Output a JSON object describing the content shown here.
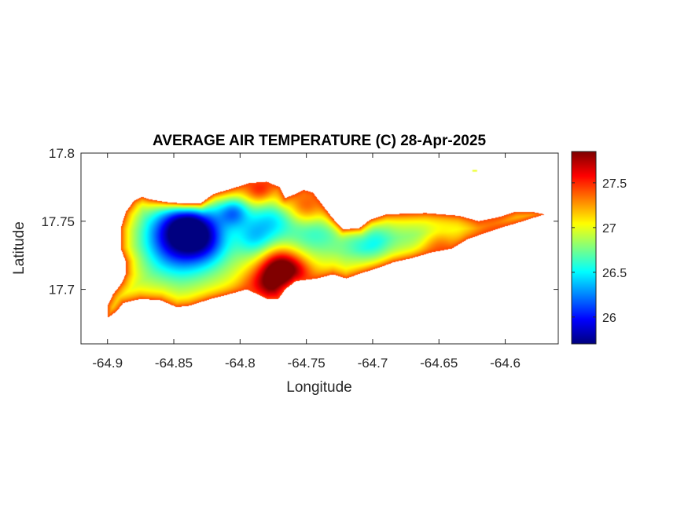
{
  "chart_data": {
    "type": "heatmap",
    "title": "AVERAGE AIR TEMPERATURE (C) 28-Apr-2025",
    "xlabel": "Longitude",
    "ylabel": "Latitude",
    "xlim": [
      -64.92,
      -64.56
    ],
    "ylim": [
      17.66,
      17.8
    ],
    "x_ticks": [
      -64.9,
      -64.85,
      -64.8,
      -64.75,
      -64.7,
      -64.65,
      -64.6
    ],
    "x_tick_labels": [
      "-64.9",
      "-64.85",
      "-64.8",
      "-64.75",
      "-64.7",
      "-64.65",
      "-64.6"
    ],
    "y_ticks": [
      17.7,
      17.75,
      17.8
    ],
    "y_tick_labels": [
      "17.7",
      "17.75",
      "17.8"
    ],
    "colormap": "jet",
    "colorbar": {
      "limits": [
        25.7,
        27.85
      ],
      "ticks": [
        26,
        26.5,
        27,
        27.5
      ],
      "tick_labels": [
        "26",
        "26.5",
        "27",
        "27.5"
      ]
    },
    "field": {
      "base_value": 26.9,
      "coast_value": 27.45,
      "coast_width_deg": 0.006,
      "anomalies": [
        {
          "lon": -64.846,
          "lat": 17.737,
          "delta": -1.05,
          "radius": 0.018
        },
        {
          "lon": -64.838,
          "lat": 17.752,
          "delta": -0.75,
          "radius": 0.014
        },
        {
          "lon": -64.805,
          "lat": 17.757,
          "delta": -0.65,
          "radius": 0.008
        },
        {
          "lon": -64.825,
          "lat": 17.735,
          "delta": -0.45,
          "radius": 0.012
        },
        {
          "lon": -64.79,
          "lat": 17.738,
          "delta": -0.4,
          "radius": 0.01
        },
        {
          "lon": -64.775,
          "lat": 17.752,
          "delta": -0.45,
          "radius": 0.012
        },
        {
          "lon": -64.745,
          "lat": 17.745,
          "delta": -0.35,
          "radius": 0.012
        },
        {
          "lon": -64.7,
          "lat": 17.735,
          "delta": -0.4,
          "radius": 0.012
        },
        {
          "lon": -64.72,
          "lat": 17.745,
          "delta": -0.3,
          "radius": 0.012
        },
        {
          "lon": -64.665,
          "lat": 17.735,
          "delta": -0.15,
          "radius": 0.012
        },
        {
          "lon": -64.77,
          "lat": 17.716,
          "delta": 0.8,
          "radius": 0.01
        },
        {
          "lon": -64.78,
          "lat": 17.7,
          "delta": 0.9,
          "radius": 0.012
        },
        {
          "lon": -64.758,
          "lat": 17.709,
          "delta": 0.65,
          "radius": 0.01
        },
        {
          "lon": -64.785,
          "lat": 17.775,
          "delta": 0.7,
          "radius": 0.009
        },
        {
          "lon": -64.75,
          "lat": 17.76,
          "delta": 0.6,
          "radius": 0.01
        },
        {
          "lon": -64.65,
          "lat": 17.73,
          "delta": 0.45,
          "radius": 0.009
        },
        {
          "lon": -64.61,
          "lat": 17.744,
          "delta": 0.35,
          "radius": 0.012
        }
      ]
    },
    "outline": [
      [
        -64.9,
        17.679
      ],
      [
        -64.893,
        17.684
      ],
      [
        -64.888,
        17.69
      ],
      [
        -64.875,
        17.693
      ],
      [
        -64.86,
        17.692
      ],
      [
        -64.848,
        17.687
      ],
      [
        -64.838,
        17.688
      ],
      [
        -64.822,
        17.693
      ],
      [
        -64.806,
        17.697
      ],
      [
        -64.795,
        17.7
      ],
      [
        -64.786,
        17.696
      ],
      [
        -64.78,
        17.693
      ],
      [
        -64.771,
        17.693
      ],
      [
        -64.766,
        17.7
      ],
      [
        -64.758,
        17.706
      ],
      [
        -64.742,
        17.708
      ],
      [
        -64.73,
        17.711
      ],
      [
        -64.72,
        17.708
      ],
      [
        -64.708,
        17.712
      ],
      [
        -64.695,
        17.716
      ],
      [
        -64.684,
        17.72
      ],
      [
        -64.67,
        17.723
      ],
      [
        -64.656,
        17.727
      ],
      [
        -64.64,
        17.73
      ],
      [
        -64.628,
        17.737
      ],
      [
        -64.616,
        17.741
      ],
      [
        -64.604,
        17.745
      ],
      [
        -64.59,
        17.749
      ],
      [
        -64.577,
        17.753
      ],
      [
        -64.57,
        17.755
      ],
      [
        -64.58,
        17.757
      ],
      [
        -64.592,
        17.757
      ],
      [
        -64.605,
        17.753
      ],
      [
        -64.62,
        17.75
      ],
      [
        -64.635,
        17.754
      ],
      [
        -64.66,
        17.756
      ],
      [
        -64.69,
        17.755
      ],
      [
        -64.702,
        17.751
      ],
      [
        -64.71,
        17.745
      ],
      [
        -64.722,
        17.744
      ],
      [
        -64.73,
        17.752
      ],
      [
        -64.738,
        17.762
      ],
      [
        -64.745,
        17.771
      ],
      [
        -64.752,
        17.773
      ],
      [
        -64.758,
        17.77
      ],
      [
        -64.766,
        17.767
      ],
      [
        -64.77,
        17.775
      ],
      [
        -64.78,
        17.779
      ],
      [
        -64.793,
        17.778
      ],
      [
        -64.806,
        17.774
      ],
      [
        -64.82,
        17.77
      ],
      [
        -64.83,
        17.763
      ],
      [
        -64.842,
        17.763
      ],
      [
        -64.855,
        17.764
      ],
      [
        -64.868,
        17.766
      ],
      [
        -64.874,
        17.768
      ],
      [
        -64.88,
        17.765
      ],
      [
        -64.886,
        17.757
      ],
      [
        -64.89,
        17.745
      ],
      [
        -64.89,
        17.73
      ],
      [
        -64.886,
        17.72
      ],
      [
        -64.886,
        17.712
      ],
      [
        -64.889,
        17.705
      ],
      [
        -64.896,
        17.696
      ],
      [
        -64.9,
        17.688
      ]
    ],
    "extra_specks": [
      [
        -64.623,
        17.787
      ]
    ]
  }
}
